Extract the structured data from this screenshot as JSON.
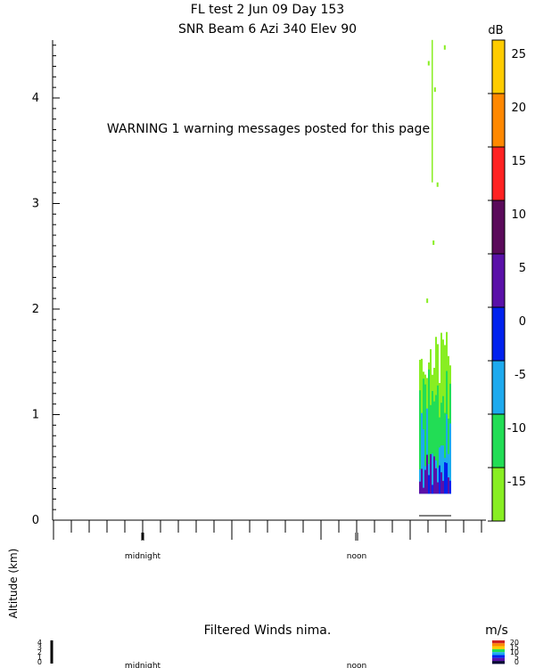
{
  "header": {
    "line1": "FL test    2 Jun 09 Day 153",
    "line2": "SNR Beam 6 Azi 340 Elev 90"
  },
  "warning": "WARNING  1 warning messages posted for this page",
  "colorbar": {
    "unit": "dB",
    "ticks": [
      "25",
      "20",
      "15",
      "10",
      "5",
      "0",
      "-5",
      "-10",
      "-15"
    ],
    "colors": [
      "#ffcc00",
      "#ff8800",
      "#ff2222",
      "#5a0a5a",
      "#5a11a8",
      "#0022ee",
      "#1eaaee",
      "#22dd55",
      "#88ee22"
    ]
  },
  "y_axis": {
    "label": "Altitude (km)",
    "tick_labels": [
      "0",
      "1",
      "2",
      "3",
      "4"
    ]
  },
  "x_axis": {
    "tick_labels": [
      "midnight",
      "noon"
    ]
  },
  "bottom_panel": {
    "title": "Filtered Winds nima.",
    "unit": "m/s",
    "y_tick_labels": [
      "4",
      "3",
      "2",
      "1",
      "0"
    ],
    "x_tick_labels": [
      "midnight",
      "noon"
    ],
    "colorbar_labels": [
      "20",
      "15",
      "10",
      "5",
      "0"
    ]
  },
  "chart_data": {
    "type": "heatmap",
    "title": "FL test    2 Jun 09 Day 153 / SNR Beam 6 Azi 340 Elev 90",
    "ylabel": "Altitude (km)",
    "ylim": [
      0,
      4.5
    ],
    "color_scale": {
      "unit": "dB",
      "min": -15,
      "max": 30,
      "step": 5
    },
    "x_markers": [
      "midnight",
      "noon"
    ],
    "data_region": {
      "time_span": "after noon (late afternoon)",
      "altitude_km_min": 0.25,
      "altitude_km_max": 1.8,
      "sparse_echoes_km": [
        2.1,
        2.65,
        3.2,
        4.1,
        4.35,
        4.5
      ],
      "dominant_dB_range": [
        -15,
        -5
      ],
      "low_level_dB": [
        0,
        10
      ]
    }
  }
}
